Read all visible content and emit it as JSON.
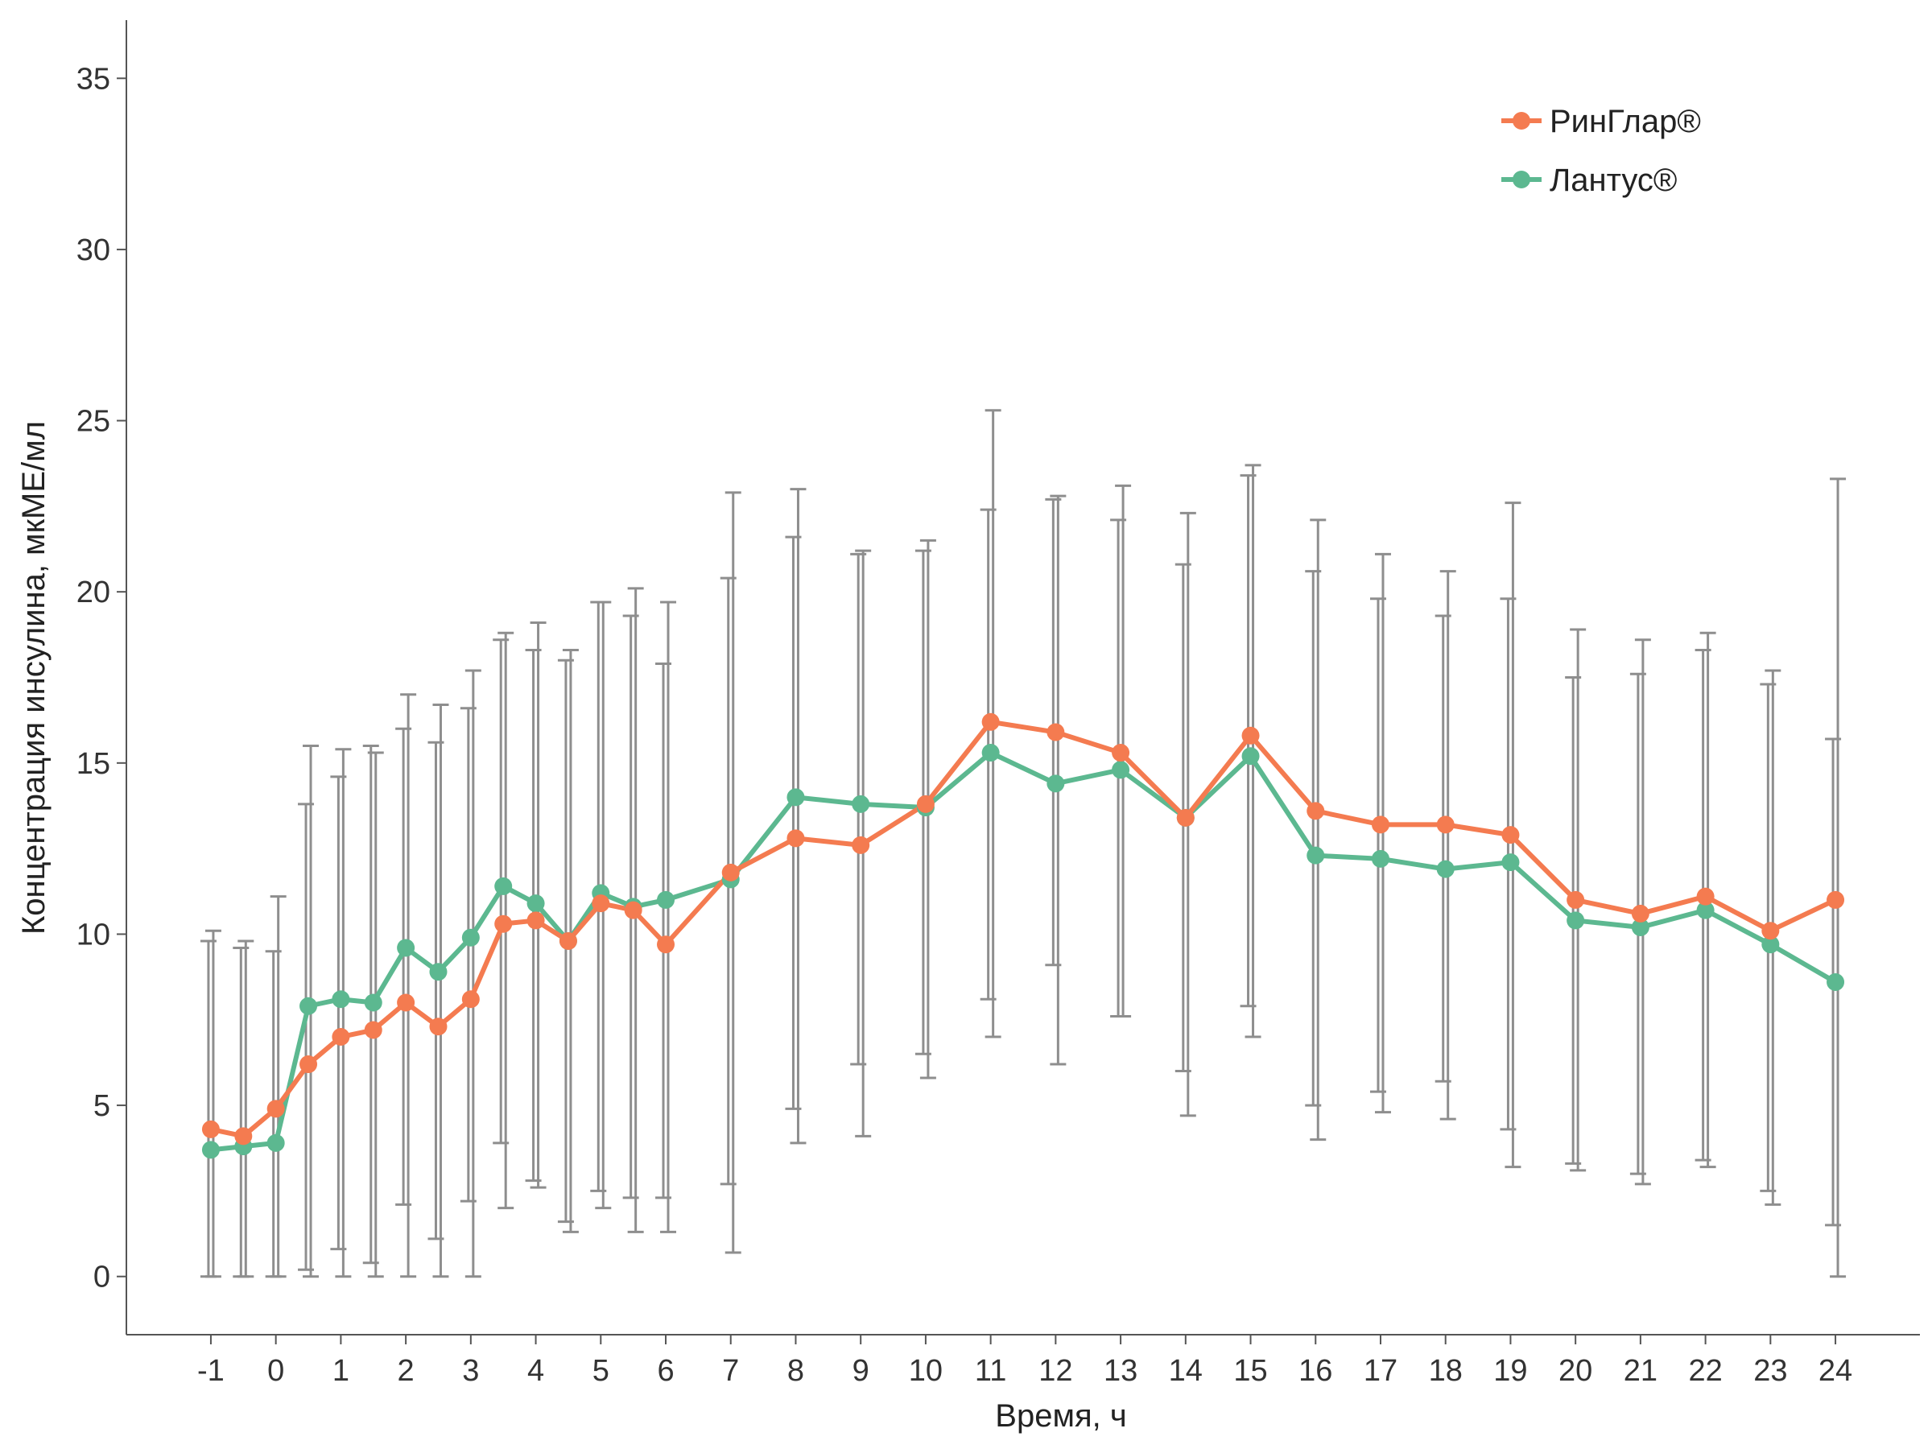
{
  "chart_data": {
    "type": "line",
    "xlabel": "Время, ч",
    "ylabel": "Концентрация инсулина, мкМЕ/мл",
    "ylim": [
      -1.7,
      36.7
    ],
    "xlim": [
      -2.3,
      25.3
    ],
    "x_ticks": [
      "-1",
      "0",
      "1",
      "2",
      "3",
      "4",
      "5",
      "6",
      "7",
      "8",
      "9",
      "10",
      "11",
      "12",
      "13",
      "14",
      "15",
      "16",
      "17",
      "18",
      "19",
      "20",
      "21",
      "22",
      "23",
      "24"
    ],
    "y_ticks": [
      "0",
      "5",
      "10",
      "15",
      "20",
      "25",
      "30",
      "35"
    ],
    "grid": false,
    "legend_position": "top-right",
    "x": [
      -1,
      -0.5,
      0,
      0.5,
      1,
      1.5,
      2,
      2.5,
      3,
      3.5,
      4,
      4.5,
      5,
      5.5,
      6,
      7,
      8,
      9,
      10,
      11,
      12,
      13,
      14,
      15,
      16,
      17,
      18,
      19,
      20,
      21,
      22,
      23,
      24
    ],
    "series": [
      {
        "name": "РинГлар®",
        "color": "#F47B50",
        "values": [
          4.3,
          4.1,
          4.9,
          6.2,
          7.0,
          7.2,
          8.0,
          7.3,
          8.1,
          10.3,
          10.4,
          9.8,
          10.9,
          10.7,
          9.7,
          11.8,
          12.8,
          12.6,
          13.8,
          16.2,
          15.9,
          15.3,
          13.4,
          15.8,
          13.6,
          13.2,
          13.2,
          12.9,
          11.0,
          10.6,
          11.1,
          10.1,
          11.0
        ],
        "error_low": [
          0.0,
          0.0,
          0.0,
          0.0,
          0.0,
          0.0,
          0.0,
          0.0,
          0.0,
          2.0,
          2.6,
          1.3,
          2.0,
          1.3,
          1.3,
          0.7,
          3.9,
          4.1,
          5.8,
          7.0,
          6.2,
          7.6,
          4.7,
          7.0,
          4.0,
          4.8,
          4.6,
          3.2,
          3.1,
          2.7,
          3.2,
          2.1,
          0.0
        ],
        "error_high": [
          10.1,
          9.8,
          11.1,
          15.5,
          15.4,
          15.3,
          17.0,
          16.7,
          17.7,
          18.8,
          19.1,
          18.3,
          19.7,
          20.1,
          19.7,
          22.9,
          23.0,
          21.2,
          21.5,
          25.3,
          22.8,
          23.1,
          22.3,
          23.7,
          22.1,
          21.1,
          20.6,
          22.6,
          18.9,
          18.6,
          18.8,
          17.7,
          23.3
        ]
      },
      {
        "name": "Лантус®",
        "color": "#5CB890",
        "values": [
          3.7,
          3.8,
          3.9,
          7.9,
          8.1,
          8.0,
          9.6,
          8.9,
          9.9,
          11.4,
          10.9,
          9.8,
          11.2,
          10.8,
          11.0,
          11.6,
          14.0,
          13.8,
          13.7,
          15.3,
          14.4,
          14.8,
          13.4,
          15.2,
          12.3,
          12.2,
          11.9,
          12.1,
          10.4,
          10.2,
          10.7,
          9.7,
          8.6
        ],
        "error_low": [
          0.0,
          0.0,
          0.0,
          0.2,
          0.8,
          0.4,
          2.1,
          1.1,
          2.2,
          3.9,
          2.8,
          1.6,
          2.5,
          2.3,
          2.3,
          2.7,
          4.9,
          6.2,
          6.5,
          8.1,
          9.1,
          7.6,
          6.0,
          7.9,
          5.0,
          5.4,
          5.7,
          4.3,
          3.3,
          3.0,
          3.4,
          2.5,
          1.5
        ],
        "error_high": [
          9.8,
          9.6,
          9.5,
          13.8,
          14.6,
          15.5,
          16.0,
          15.6,
          16.6,
          18.6,
          18.3,
          18.0,
          19.7,
          19.3,
          17.9,
          20.4,
          21.6,
          21.1,
          21.2,
          22.4,
          22.7,
          22.1,
          20.8,
          23.4,
          20.6,
          19.8,
          19.3,
          19.8,
          17.5,
          17.6,
          18.3,
          17.3,
          15.7
        ]
      }
    ]
  }
}
